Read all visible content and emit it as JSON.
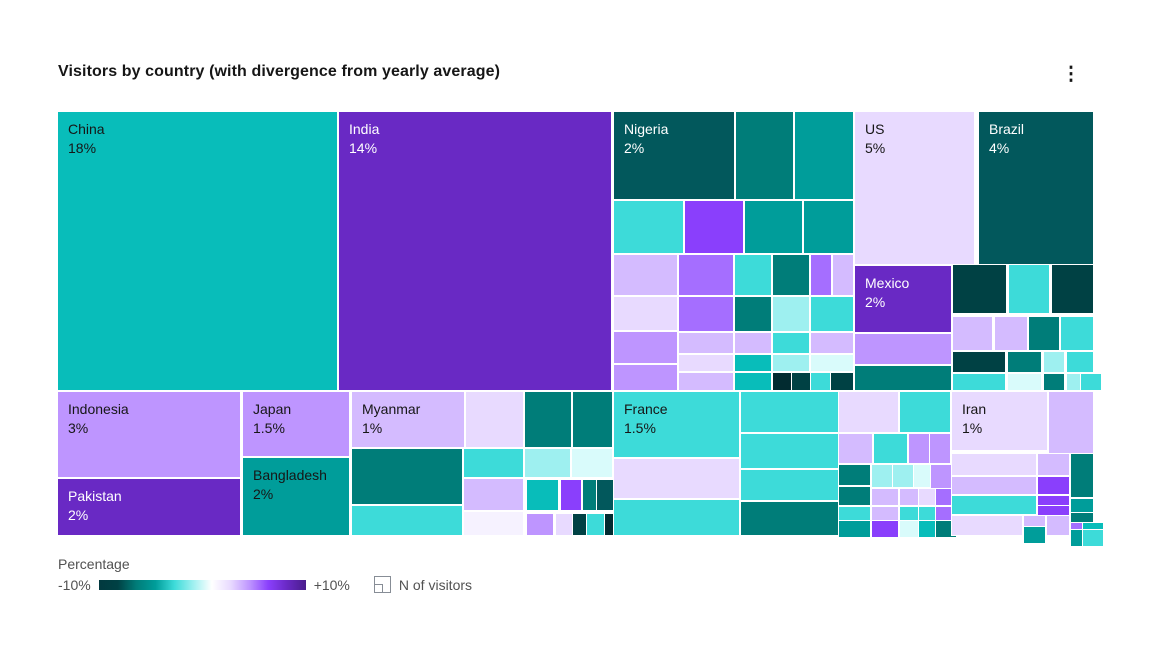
{
  "header": {
    "overflow_menu_glyph": "⋮"
  },
  "legend": {
    "gradient_title": "Percentage",
    "min_label": "-10%",
    "max_label": "+10%",
    "size_label": "N of visitors",
    "gradient_stops": [
      "#02393f",
      "#004144",
      "#007d79",
      "#009d9a",
      "#3ddbd9",
      "#9ef0f0",
      "#ffffff",
      "#e8daff",
      "#be95ff",
      "#8a3ffc",
      "#6929c4",
      "#491d8b"
    ]
  },
  "chart_data": {
    "type": "treemap",
    "title": "Visitors by country (with divergence from yearly average)",
    "color_scale": {
      "label": "Percentage",
      "min": "-10%",
      "max": "+10%"
    },
    "size_metric": "N of visitors",
    "categories": [
      "China",
      "India",
      "US",
      "Brazil",
      "Indonesia",
      "Nigeria",
      "Mexico",
      "Pakistan",
      "Bangladesh",
      "Japan",
      "France",
      "Myanmar",
      "Iran"
    ],
    "values": [
      18,
      14,
      5,
      4,
      3,
      2,
      2,
      2,
      2,
      1.5,
      1.5,
      1,
      1
    ],
    "value_labels": [
      "18%",
      "14%",
      "5%",
      "4%",
      "3%",
      "2%",
      "2%",
      "2%",
      "2%",
      "1.5%",
      "1.5%",
      "1%",
      "1%"
    ],
    "palette": {
      "t90": "#022b30",
      "t80": "#004144",
      "t70": "#02585c",
      "t60": "#007d79",
      "t50": "#009d9a",
      "t40": "#08bdba",
      "t30": "#3ddbd9",
      "t20": "#9ef0f0",
      "t10": "#d9fbfb",
      "p10": "#f6f2ff",
      "p20": "#e8daff",
      "p30": "#d4bbff",
      "p40": "#be95ff",
      "p50": "#a56eff",
      "p60": "#8a3ffc",
      "p70": "#6929c4"
    },
    "cells": [
      [
        0,
        0,
        279,
        278,
        "t40",
        "China",
        "18%",
        "dark"
      ],
      [
        281,
        0,
        272,
        278,
        "p70",
        "India",
        "14%",
        "light"
      ],
      [
        556,
        0,
        120,
        87,
        "t70",
        "Nigeria",
        "2%",
        "light"
      ],
      [
        797,
        0,
        119,
        152,
        "p20",
        "US",
        "5%",
        "dark"
      ],
      [
        921,
        0,
        114,
        152,
        "t70",
        "Brazil",
        "4%",
        "light"
      ],
      [
        797,
        154,
        96,
        66,
        "p70",
        "Mexico",
        "2%",
        "light"
      ],
      [
        0,
        280,
        182,
        85,
        "p40",
        "Indonesia",
        "3%",
        "dark"
      ],
      [
        0,
        367,
        182,
        56,
        "p70",
        "Pakistan",
        "2%",
        "light"
      ],
      [
        185,
        280,
        106,
        64,
        "p40",
        "Japan",
        "1.5%",
        "dark"
      ],
      [
        185,
        346,
        106,
        77,
        "t50",
        "Bangladesh",
        "2%",
        "dark"
      ],
      [
        294,
        280,
        112,
        55,
        "p30",
        "Myanmar",
        "1%",
        "dark"
      ],
      [
        556,
        280,
        125,
        65,
        "t30",
        "France",
        "1.5%",
        "dark"
      ],
      [
        894,
        280,
        95,
        58,
        "p20",
        "Iran",
        "1%",
        "dark"
      ],
      [
        678,
        0,
        57,
        87,
        "t60"
      ],
      [
        737,
        0,
        58,
        87,
        "t50"
      ],
      [
        556,
        89,
        69,
        52,
        "t30"
      ],
      [
        627,
        89,
        58,
        52,
        "p60"
      ],
      [
        687,
        89,
        57,
        52,
        "t50"
      ],
      [
        746,
        89,
        49,
        52,
        "t50"
      ],
      [
        556,
        143,
        63,
        40,
        "p30"
      ],
      [
        556,
        185,
        63,
        33,
        "p20"
      ],
      [
        556,
        220,
        63,
        31,
        "p40"
      ],
      [
        556,
        253,
        63,
        25,
        "p40"
      ],
      [
        621,
        143,
        54,
        40,
        "p50"
      ],
      [
        621,
        185,
        54,
        34,
        "p50"
      ],
      [
        621,
        221,
        54,
        20,
        "p30"
      ],
      [
        621,
        243,
        54,
        16,
        "p20"
      ],
      [
        621,
        261,
        54,
        17,
        "p30"
      ],
      [
        677,
        143,
        36,
        40,
        "t30"
      ],
      [
        677,
        185,
        36,
        34,
        "t60"
      ],
      [
        677,
        221,
        36,
        20,
        "p30"
      ],
      [
        677,
        243,
        36,
        16,
        "t40"
      ],
      [
        677,
        261,
        36,
        17,
        "t40"
      ],
      [
        715,
        143,
        36,
        40,
        "t60"
      ],
      [
        715,
        185,
        36,
        34,
        "t20"
      ],
      [
        715,
        221,
        36,
        20,
        "t30"
      ],
      [
        715,
        243,
        36,
        16,
        "t20"
      ],
      [
        715,
        261,
        17,
        17,
        "t90"
      ],
      [
        753,
        143,
        20,
        40,
        "p50"
      ],
      [
        775,
        143,
        20,
        40,
        "p30"
      ],
      [
        753,
        185,
        42,
        34,
        "t30"
      ],
      [
        753,
        221,
        42,
        20,
        "p30"
      ],
      [
        753,
        243,
        42,
        16,
        "t10"
      ],
      [
        734,
        261,
        17,
        17,
        "t80"
      ],
      [
        753,
        261,
        18,
        17,
        "t30"
      ],
      [
        773,
        261,
        22,
        17,
        "t80"
      ],
      [
        797,
        222,
        96,
        30,
        "p40"
      ],
      [
        797,
        254,
        96,
        24,
        "t60"
      ],
      [
        895,
        153,
        53,
        48,
        "t80"
      ],
      [
        951,
        153,
        40,
        48,
        "t30"
      ],
      [
        994,
        153,
        41,
        48,
        "t80"
      ],
      [
        895,
        205,
        39,
        33,
        "p30"
      ],
      [
        937,
        205,
        32,
        33,
        "p30"
      ],
      [
        971,
        205,
        30,
        33,
        "t60"
      ],
      [
        1003,
        205,
        32,
        33,
        "t30"
      ],
      [
        895,
        240,
        52,
        20,
        "t80"
      ],
      [
        950,
        240,
        33,
        20,
        "t60"
      ],
      [
        986,
        240,
        20,
        20,
        "t20"
      ],
      [
        1009,
        240,
        26,
        20,
        "t30"
      ],
      [
        895,
        262,
        52,
        16,
        "t30"
      ],
      [
        950,
        262,
        33,
        16,
        "t10"
      ],
      [
        986,
        262,
        20,
        16,
        "t60"
      ],
      [
        1009,
        262,
        12,
        16,
        "t20"
      ],
      [
        1023,
        262,
        12,
        16,
        "t30"
      ],
      [
        408,
        280,
        57,
        55,
        "p20"
      ],
      [
        467,
        280,
        46,
        55,
        "t60"
      ],
      [
        515,
        280,
        39,
        55,
        "t60"
      ],
      [
        294,
        337,
        110,
        55,
        "t60"
      ],
      [
        294,
        394,
        110,
        29,
        "t30"
      ],
      [
        406,
        337,
        59,
        28,
        "t30"
      ],
      [
        406,
        367,
        59,
        31,
        "p30"
      ],
      [
        406,
        400,
        59,
        23,
        "p10"
      ],
      [
        467,
        337,
        45,
        28,
        "t20"
      ],
      [
        514,
        337,
        40,
        28,
        "t10"
      ],
      [
        469,
        368,
        31,
        30,
        "t40"
      ],
      [
        503,
        368,
        19,
        30,
        "p60"
      ],
      [
        525,
        368,
        12,
        30,
        "t60"
      ],
      [
        539,
        368,
        15,
        30,
        "t70"
      ],
      [
        469,
        402,
        26,
        21,
        "p40"
      ],
      [
        498,
        402,
        14,
        21,
        "p20"
      ],
      [
        515,
        402,
        11,
        21,
        "t80"
      ],
      [
        529,
        402,
        16,
        21,
        "t30"
      ],
      [
        547,
        402,
        7,
        21,
        "t90"
      ],
      [
        556,
        347,
        125,
        39,
        "p20"
      ],
      [
        556,
        388,
        125,
        35,
        "t30"
      ],
      [
        683,
        280,
        97,
        40,
        "t30"
      ],
      [
        683,
        322,
        97,
        34,
        "t30"
      ],
      [
        683,
        358,
        97,
        30,
        "t30"
      ],
      [
        683,
        390,
        97,
        33,
        "t60"
      ],
      [
        781,
        280,
        59,
        40,
        "p20"
      ],
      [
        842,
        280,
        50,
        40,
        "t30"
      ],
      [
        781,
        322,
        33,
        29,
        "p30"
      ],
      [
        816,
        322,
        33,
        29,
        "t30"
      ],
      [
        851,
        322,
        19,
        29,
        "p40"
      ],
      [
        872,
        322,
        20,
        29,
        "p40"
      ],
      [
        781,
        353,
        31,
        20,
        "t60"
      ],
      [
        781,
        375,
        31,
        18,
        "t60"
      ],
      [
        814,
        353,
        19,
        22,
        "t20"
      ],
      [
        835,
        353,
        19,
        22,
        "t20"
      ],
      [
        856,
        353,
        15,
        22,
        "t10"
      ],
      [
        873,
        353,
        19,
        28,
        "p40"
      ],
      [
        814,
        377,
        26,
        16,
        "p30"
      ],
      [
        842,
        377,
        17,
        16,
        "p30"
      ],
      [
        861,
        377,
        15,
        16,
        "p20"
      ],
      [
        878,
        377,
        14,
        16,
        "p50"
      ],
      [
        781,
        395,
        31,
        12,
        "t30"
      ],
      [
        781,
        409,
        31,
        14,
        "t50"
      ],
      [
        814,
        395,
        26,
        12,
        "p30"
      ],
      [
        842,
        395,
        17,
        12,
        "t30"
      ],
      [
        861,
        395,
        15,
        12,
        "t30"
      ],
      [
        878,
        395,
        14,
        12,
        "p50"
      ],
      [
        814,
        409,
        26,
        14,
        "p60"
      ],
      [
        842,
        409,
        17,
        14,
        "t10"
      ],
      [
        861,
        409,
        15,
        14,
        "t40"
      ],
      [
        878,
        409,
        14,
        14,
        "t60"
      ],
      [
        991,
        280,
        44,
        62,
        "p30"
      ],
      [
        894,
        342,
        84,
        21,
        "p20"
      ],
      [
        980,
        342,
        31,
        21,
        "p30"
      ],
      [
        1013,
        342,
        22,
        43,
        "t60"
      ],
      [
        894,
        365,
        84,
        17,
        "p30"
      ],
      [
        980,
        365,
        31,
        17,
        "p60"
      ],
      [
        894,
        384,
        84,
        18,
        "t30"
      ],
      [
        980,
        384,
        31,
        8,
        "p60"
      ],
      [
        980,
        394,
        31,
        8,
        "p60"
      ],
      [
        1013,
        387,
        22,
        12,
        "t50"
      ],
      [
        894,
        404,
        70,
        19,
        "p20"
      ],
      [
        966,
        404,
        21,
        9,
        "p30"
      ],
      [
        966,
        415,
        21,
        8,
        "t50"
      ],
      [
        989,
        404,
        22,
        19,
        "p30"
      ],
      [
        1013,
        401,
        22,
        8,
        "t60"
      ],
      [
        1013,
        411,
        10,
        5,
        "p50"
      ],
      [
        1025,
        411,
        10,
        5,
        "t40"
      ],
      [
        1013,
        418,
        10,
        5,
        "t50"
      ],
      [
        1025,
        418,
        10,
        5,
        "t30"
      ]
    ]
  }
}
